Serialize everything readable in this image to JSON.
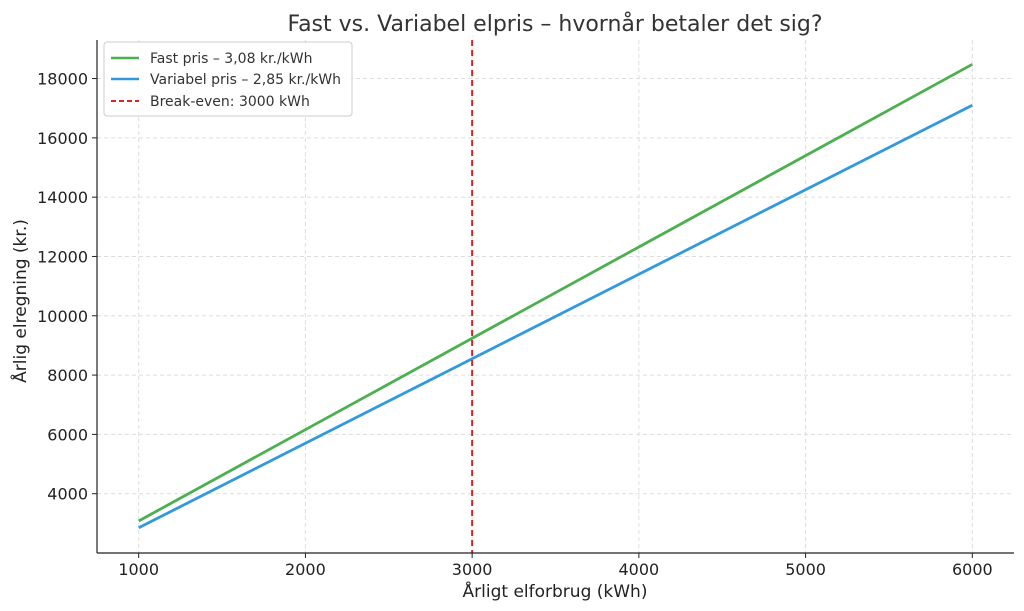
{
  "chart_data": {
    "type": "line",
    "title": "Fast vs. Variabel elpris – hvornår betaler det sig?",
    "xlabel": "Årligt elforbrug (kWh)",
    "ylabel": "Årlig elregning (kr.)",
    "xlim": [
      750,
      6250
    ],
    "ylim": [
      2000,
      19300
    ],
    "xticks": [
      1000,
      2000,
      3000,
      4000,
      5000,
      6000
    ],
    "yticks": [
      4000,
      6000,
      8000,
      10000,
      12000,
      14000,
      16000,
      18000
    ],
    "grid": true,
    "legend_position": "top-left",
    "series": [
      {
        "name": "Fast pris – 3,08 kr./kWh",
        "color": "#4caf50",
        "style": "solid",
        "x": [
          1000,
          6000
        ],
        "y": [
          3080,
          18480
        ]
      },
      {
        "name": "Variabel pris – 2,85 kr./kWh",
        "color": "#3399dd",
        "style": "solid",
        "x": [
          1000,
          6000
        ],
        "y": [
          2850,
          17100
        ]
      }
    ],
    "vline": {
      "name": "Break-even: 3000 kWh",
      "x": 3000,
      "color": "#dd2222",
      "style": "dashed"
    }
  }
}
